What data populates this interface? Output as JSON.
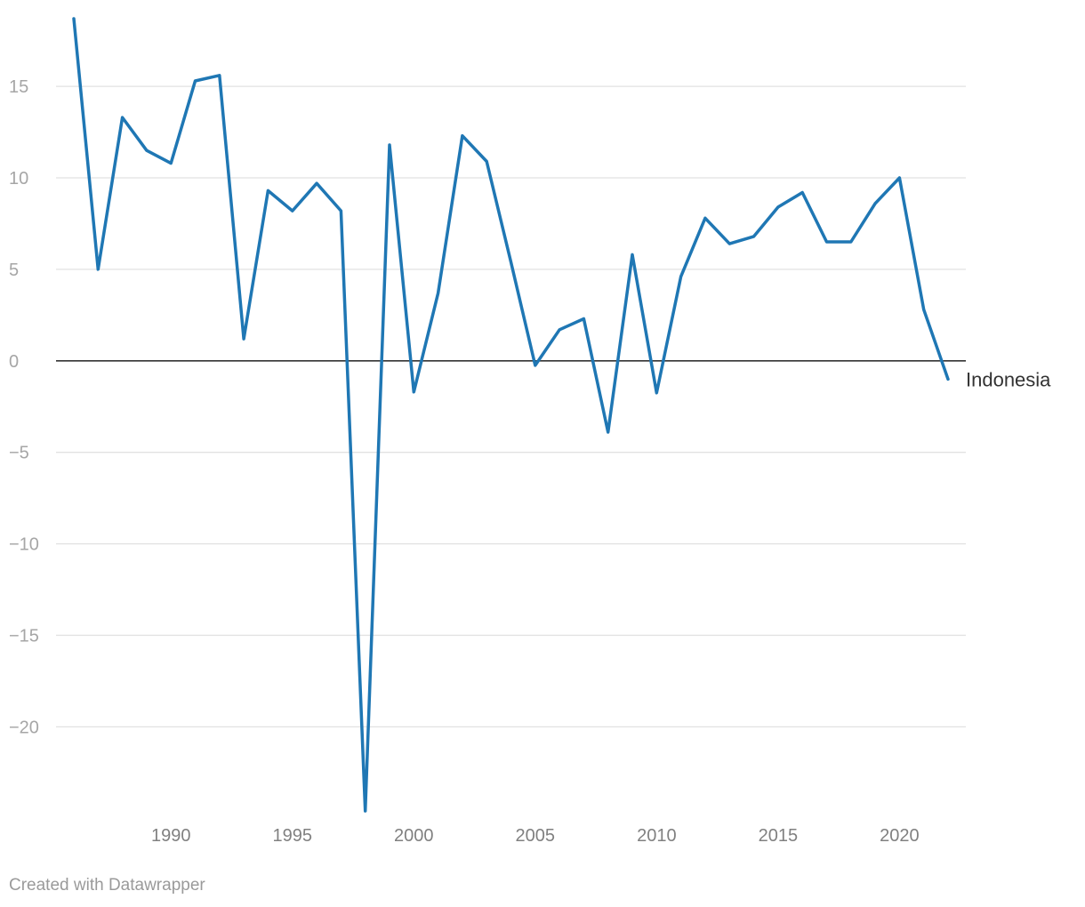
{
  "chart_data": {
    "type": "line",
    "title": "",
    "xlabel": "",
    "ylabel": "",
    "x": [
      1986,
      1987,
      1988,
      1989,
      1990,
      1991,
      1992,
      1993,
      1994,
      1995,
      1996,
      1997,
      1998,
      1999,
      2000,
      2001,
      2002,
      2003,
      2004,
      2005,
      2006,
      2007,
      2008,
      2009,
      2010,
      2011,
      2012,
      2013,
      2014,
      2015,
      2016,
      2017,
      2018,
      2019,
      2020,
      2021,
      2022
    ],
    "series": [
      {
        "name": "Indonesia",
        "color": "#1f77b4",
        "values": [
          18.7,
          5.0,
          13.3,
          11.5,
          10.8,
          15.3,
          15.6,
          1.2,
          9.3,
          8.2,
          9.7,
          8.2,
          -24.6,
          11.8,
          -1.7,
          3.7,
          12.3,
          10.9,
          5.4,
          -0.25,
          1.7,
          2.3,
          -3.9,
          5.8,
          -1.75,
          4.6,
          7.8,
          6.4,
          6.8,
          8.4,
          9.2,
          6.5,
          6.5,
          8.6,
          10.0,
          2.8,
          -1.0
        ]
      }
    ],
    "yticks": [
      15,
      10,
      5,
      0,
      -5,
      -10,
      -15,
      -20
    ],
    "ytick_labels": [
      "15",
      "10",
      "5",
      "0",
      "−5",
      "−10",
      "−15",
      "−20"
    ],
    "xticks": [
      1990,
      1995,
      2000,
      2005,
      2010,
      2015,
      2020
    ],
    "xtick_labels": [
      "1990",
      "1995",
      "2000",
      "2005",
      "2010",
      "2015",
      "2020"
    ],
    "ylim": [
      -24.6,
      18.7
    ],
    "xlim": [
      1986,
      2022
    ],
    "grid": true,
    "zero_line": true
  },
  "footer": {
    "credit": "Created with Datawrapper"
  }
}
